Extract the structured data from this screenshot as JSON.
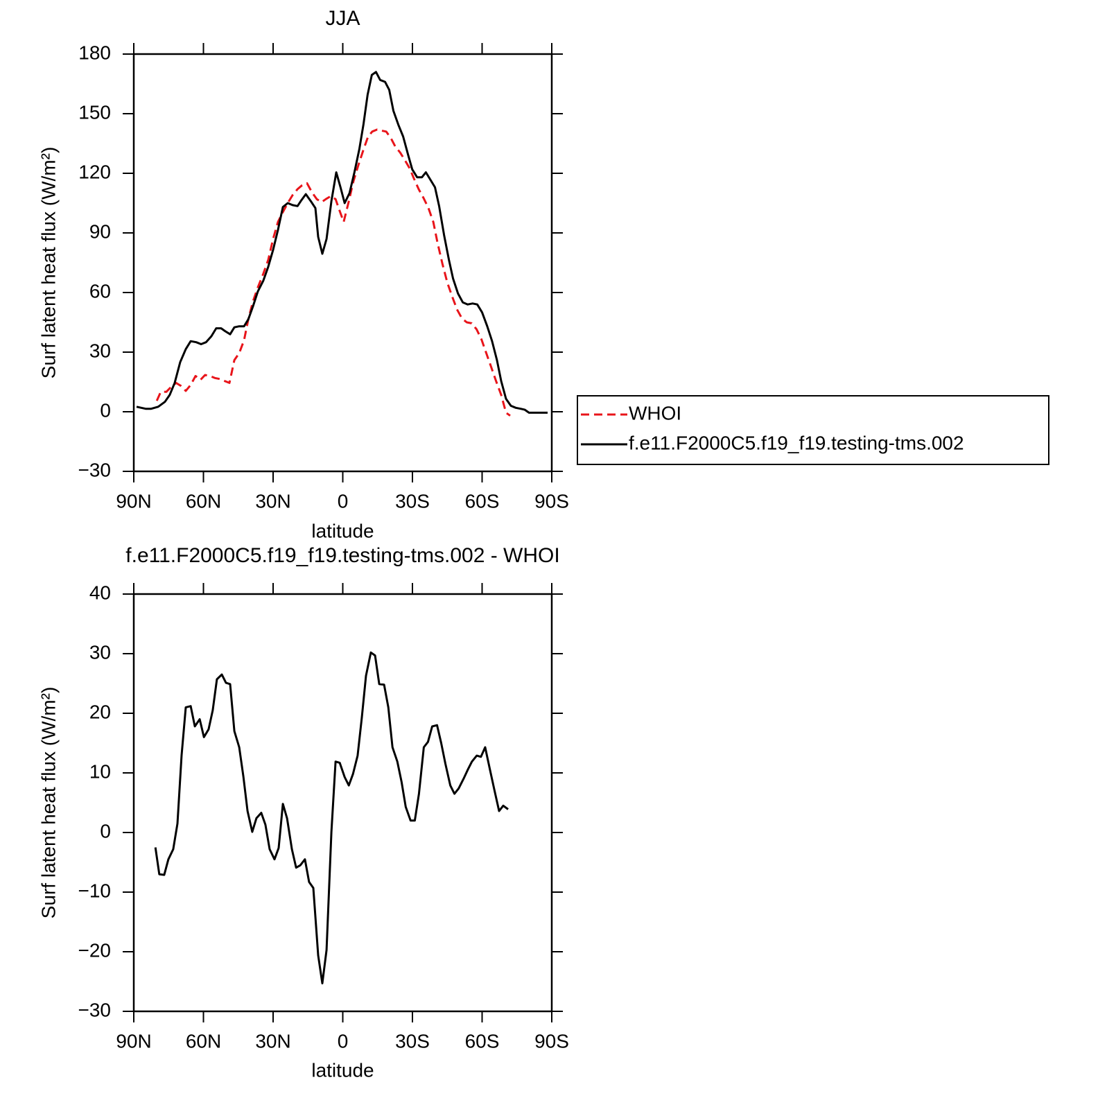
{
  "chart_data": [
    {
      "type": "line",
      "title": "JJA",
      "xlabel": "latitude",
      "ylabel": "Surf latent heat flux (W/m²)",
      "xlim": [
        90,
        -90
      ],
      "xticks": [
        {
          "value": 90,
          "label": "90N"
        },
        {
          "value": 60,
          "label": "60N"
        },
        {
          "value": 30,
          "label": "30N"
        },
        0,
        {
          "value": -30,
          "label": "30S"
        },
        {
          "value": -60,
          "label": "60S"
        },
        {
          "value": -90,
          "label": "90S"
        }
      ],
      "ylim": [
        -30,
        180
      ],
      "yticks": [
        {
          "value": -30,
          "label": "−30"
        },
        0,
        30,
        60,
        90,
        120,
        150,
        180
      ],
      "legend": "right",
      "series": [
        {
          "name": "WHOI",
          "color": "#e8141a",
          "linestyle": "dashed",
          "x": [
            80.1,
            78.4,
            76,
            73.9,
            71.8,
            69.7,
            67.6,
            65.5,
            63.4,
            61.3,
            59.3,
            57.2,
            55.1,
            53,
            50.9,
            48.8,
            46.7,
            44.6,
            42.5,
            40.7,
            38.7,
            36.6,
            34.2,
            32.1,
            30,
            27.9,
            25.8,
            23.7,
            21.6,
            19.5,
            17.5,
            15.4,
            13.3,
            11.2,
            9.1,
            7.3,
            5.2,
            3.1,
            1.3,
            -0.4,
            -2.5,
            -4.6,
            -6.7,
            -8.8,
            -10.9,
            -12.7,
            -14.8,
            -16.6,
            -18.7,
            -20.8,
            -22.6,
            -24.7,
            -26.8,
            -28.8,
            -30.6,
            -32.7,
            -34.8,
            -36.9,
            -39,
            -40.8,
            -42.9,
            -45,
            -47.1,
            -49.2,
            -51.3,
            -53.4,
            -55.5,
            -57.6,
            -59.7,
            -61.8,
            -63.9,
            -66,
            -68.2,
            -70.3,
            -72.1
          ],
          "values": [
            5.5,
            10,
            10,
            12.5,
            14.5,
            13,
            10.5,
            13.5,
            18,
            16,
            18.5,
            18,
            17,
            16.5,
            15.5,
            14.5,
            26,
            29.5,
            36,
            46.5,
            55.5,
            62.5,
            69.5,
            76.5,
            87,
            95.5,
            100.5,
            105,
            109,
            112,
            114,
            115,
            110.5,
            107,
            105.5,
            107,
            108.5,
            107,
            101,
            95.5,
            105.5,
            116,
            124,
            131.5,
            138.5,
            141,
            142,
            141.5,
            141,
            137.5,
            133.5,
            130.5,
            126.5,
            122.5,
            117.5,
            112,
            107.5,
            102.5,
            95.5,
            85,
            74.5,
            65,
            58,
            51.5,
            47,
            45,
            44.5,
            41.5,
            36.5,
            29.5,
            22.5,
            15.5,
            8.5,
            -0.5,
            -2
          ]
        },
        {
          "name": "f.e11.F2000C5.f19_f19.testing-tms.002",
          "color": "#000000",
          "linestyle": "solid",
          "x": [
            88.8,
            84.9,
            82.5,
            79.5,
            76.6,
            74.5,
            72.4,
            70,
            67.6,
            65.5,
            63.1,
            61,
            58.9,
            56.6,
            54.5,
            52.4,
            50.6,
            48.5,
            46.7,
            44.6,
            42.5,
            40.7,
            38.7,
            36.6,
            34.2,
            32.1,
            30,
            27.9,
            25.8,
            23.7,
            21.6,
            19.5,
            17.8,
            15.9,
            13.8,
            11.8,
            10.6,
            8.8,
            7,
            4.9,
            2.8,
            1,
            -0.8,
            -2.9,
            -5,
            -7.1,
            -8.9,
            -10.7,
            -12.5,
            -14.3,
            -16.1,
            -18.2,
            -20,
            -21.8,
            -23.9,
            -26,
            -28.1,
            -29.9,
            -32,
            -34.1,
            -35.8,
            -37.6,
            -39.7,
            -41.5,
            -43.6,
            -45.7,
            -47.5,
            -49.6,
            -51.7,
            -53.8,
            -55.9,
            -57.9,
            -60,
            -62.2,
            -64.3,
            -66.4,
            -68.2,
            -70.3,
            -72.4,
            -74.5,
            -76.6,
            -78.4,
            -80.2,
            -82.2,
            -84.6,
            -88.2
          ],
          "values": [
            2.5,
            1.5,
            1.5,
            2.5,
            5,
            8.5,
            14.5,
            25,
            31.5,
            35.5,
            35,
            34,
            35,
            38,
            42,
            42,
            40.5,
            39,
            42.5,
            43,
            43,
            46.5,
            53,
            60.5,
            66,
            73,
            81.5,
            91.5,
            103,
            105,
            104,
            103.5,
            106.5,
            109.5,
            106,
            102.5,
            88,
            79.5,
            87,
            106,
            120.5,
            113,
            105,
            110,
            120.5,
            132,
            144.5,
            159.5,
            169.5,
            171,
            167,
            166,
            162,
            151.5,
            144.5,
            138.5,
            129.5,
            122,
            118,
            118,
            120.5,
            117,
            113,
            103.5,
            89,
            76.5,
            67,
            59.5,
            55,
            54,
            54.5,
            54,
            50,
            43,
            35.5,
            26,
            15.5,
            6.5,
            3,
            2,
            1.5,
            1,
            -0.5,
            -0.5,
            -0.5,
            -0.5
          ]
        }
      ]
    },
    {
      "type": "line",
      "title": "f.e11.F2000C5.f19_f19.testing-tms.002 - WHOI",
      "xlabel": "latitude",
      "ylabel": "Surf latent heat flux (W/m²)",
      "xlim": [
        90,
        -90
      ],
      "xticks": [
        {
          "value": 90,
          "label": "90N"
        },
        {
          "value": 60,
          "label": "60N"
        },
        {
          "value": 30,
          "label": "30N"
        },
        0,
        {
          "value": -30,
          "label": "30S"
        },
        {
          "value": -60,
          "label": "60S"
        },
        {
          "value": -90,
          "label": "90S"
        }
      ],
      "ylim": [
        -30,
        40
      ],
      "yticks": [
        {
          "value": -30,
          "label": "−30"
        },
        {
          "value": -20,
          "label": "−20"
        },
        {
          "value": -10,
          "label": "−10"
        },
        0,
        10,
        20,
        30,
        40
      ],
      "series": [
        {
          "color": "#000000",
          "linestyle": "solid",
          "x": [
            80.7,
            79,
            76.9,
            75.1,
            73,
            71.2,
            69.4,
            67.6,
            65.5,
            63.7,
            61.6,
            59.8,
            57.8,
            56,
            54.2,
            52.1,
            50.3,
            48.5,
            46.7,
            44.6,
            42.8,
            41,
            39,
            37.2,
            35.1,
            33.3,
            31.5,
            29.4,
            27.6,
            25.8,
            24,
            21.9,
            20.1,
            18.3,
            16.3,
            14.5,
            12.7,
            10.6,
            8.8,
            7,
            4.9,
            3.1,
            1.3,
            -0.8,
            -2.6,
            -4.4,
            -6.4,
            -8.2,
            -10,
            -12.1,
            -13.9,
            -15.7,
            -17.8,
            -19.6,
            -21.4,
            -23.5,
            -25.3,
            -27.1,
            -29.2,
            -31,
            -32.8,
            -34.9,
            -36.7,
            -38.5,
            -40.6,
            -42.4,
            -44.2,
            -46.3,
            -48.1,
            -49.9,
            -52,
            -53.8,
            -55.6,
            -57.7,
            -59.5,
            -61.3,
            -63.4,
            -65.2,
            -67.3,
            -69.1,
            -71.2
          ],
          "values": [
            -2.5,
            -7,
            -7.1,
            -4.5,
            -2.8,
            1.5,
            13,
            21,
            21.2,
            17.8,
            19,
            16,
            17.3,
            20.5,
            25.7,
            26.5,
            25.1,
            24.9,
            17,
            14.3,
            9.4,
            3.6,
            0.1,
            2.4,
            3.3,
            1.3,
            -2.8,
            -4.5,
            -2.6,
            4.8,
            2.4,
            -2.8,
            -5.9,
            -5.5,
            -4.5,
            -8.3,
            -9.3,
            -20.6,
            -25.3,
            -19.7,
            0.1,
            11.9,
            11.7,
            9.3,
            7.9,
            9.8,
            12.9,
            19.3,
            26.3,
            30.2,
            29.7,
            24.9,
            24.8,
            21,
            14.3,
            11.9,
            8.5,
            4.3,
            2,
            2,
            6.5,
            14.3,
            15.2,
            17.8,
            18,
            15,
            11.5,
            7.9,
            6.5,
            7.4,
            9,
            10.5,
            11.9,
            12.9,
            12.7,
            14.3,
            10.5,
            7.3,
            3.6,
            4.5,
            3.9
          ]
        }
      ]
    }
  ]
}
